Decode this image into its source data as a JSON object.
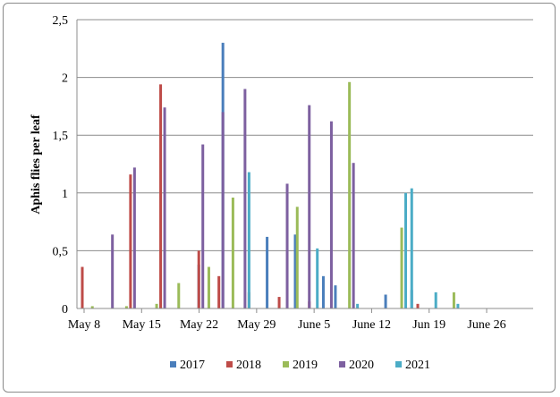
{
  "chart_data": {
    "type": "bar",
    "ylabel": "Aphis flies per leaf",
    "ylim": [
      0,
      2.5
    ],
    "y_ticks": [
      "0",
      "0,5",
      "1",
      "1,5",
      "2",
      "2,5"
    ],
    "y_tick_values": [
      0,
      0.5,
      1,
      1.5,
      2,
      2.5
    ],
    "x_tick_labels": [
      "May 8",
      "May 15",
      "May 22",
      "May 29",
      "June 5",
      "June 12",
      "Jun 19",
      "June 26"
    ],
    "x_range_days": [
      0,
      22
    ],
    "grid": "horizontal",
    "legend_position": "bottom",
    "series": [
      {
        "name": "2017",
        "color": "#4a7ebb",
        "points": [
          {
            "x": 0.0,
            "y": 0.04
          },
          {
            "x": 3.9,
            "y": 0.01
          },
          {
            "x": 5.8,
            "y": 0.38
          },
          {
            "x": 7.0,
            "y": 2.3
          },
          {
            "x": 9.2,
            "y": 0.62
          },
          {
            "x": 10.6,
            "y": 0.64
          },
          {
            "x": 12.0,
            "y": 0.28
          },
          {
            "x": 12.6,
            "y": 0.2
          },
          {
            "x": 15.1,
            "y": 0.12
          },
          {
            "x": 16.4,
            "y": 0.16
          }
        ]
      },
      {
        "name": "2018",
        "color": "#be4b48",
        "points": [
          {
            "x": 0.0,
            "y": 0.36
          },
          {
            "x": 2.4,
            "y": 1.16
          },
          {
            "x": 3.9,
            "y": 1.94
          },
          {
            "x": 5.8,
            "y": 0.5
          },
          {
            "x": 6.8,
            "y": 0.28
          },
          {
            "x": 8.3,
            "y": 0.14
          },
          {
            "x": 9.8,
            "y": 0.1
          },
          {
            "x": 11.3,
            "y": 0.06
          },
          {
            "x": 16.7,
            "y": 0.04
          }
        ]
      },
      {
        "name": "2019",
        "color": "#9bbb59",
        "points": [
          {
            "x": 0.5,
            "y": 0.02
          },
          {
            "x": 2.2,
            "y": 0.02
          },
          {
            "x": 3.7,
            "y": 0.04
          },
          {
            "x": 4.8,
            "y": 0.22
          },
          {
            "x": 6.3,
            "y": 0.36
          },
          {
            "x": 7.5,
            "y": 0.96
          },
          {
            "x": 10.7,
            "y": 0.88
          },
          {
            "x": 13.3,
            "y": 1.96
          },
          {
            "x": 15.9,
            "y": 0.7
          },
          {
            "x": 18.5,
            "y": 0.14
          }
        ]
      },
      {
        "name": "2020",
        "color": "#7d60a0",
        "points": [
          {
            "x": 1.5,
            "y": 0.64
          },
          {
            "x": 2.6,
            "y": 1.22
          },
          {
            "x": 4.1,
            "y": 1.74
          },
          {
            "x": 6.0,
            "y": 1.42
          },
          {
            "x": 7.0,
            "y": 1.7
          },
          {
            "x": 8.1,
            "y": 1.9
          },
          {
            "x": 10.2,
            "y": 1.08
          },
          {
            "x": 11.3,
            "y": 1.76
          },
          {
            "x": 12.4,
            "y": 1.62
          },
          {
            "x": 13.5,
            "y": 1.26
          }
        ]
      },
      {
        "name": "2021",
        "color": "#4bacc6",
        "points": [
          {
            "x": 8.3,
            "y": 1.18
          },
          {
            "x": 11.7,
            "y": 0.52
          },
          {
            "x": 13.7,
            "y": 0.04
          },
          {
            "x": 16.1,
            "y": 1.0
          },
          {
            "x": 16.4,
            "y": 1.04
          },
          {
            "x": 17.6,
            "y": 0.14
          },
          {
            "x": 18.7,
            "y": 0.04
          }
        ]
      }
    ]
  }
}
